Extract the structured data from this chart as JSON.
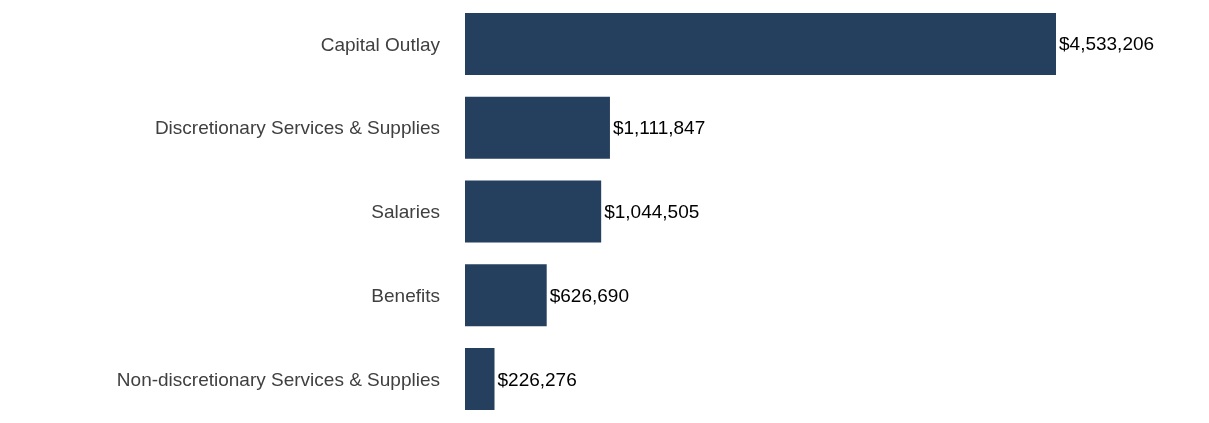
{
  "chart_data": {
    "type": "bar",
    "orientation": "horizontal",
    "categories": [
      "Capital Outlay",
      "Discretionary Services & Supplies",
      "Salaries",
      "Benefits",
      "Non-discretionary Services & Supplies"
    ],
    "values": [
      4533206,
      1111847,
      1044505,
      626690,
      226276
    ],
    "value_labels": [
      "$4,533,206",
      "$1,111,847",
      "$1,044,505",
      "$626,690",
      "$226,276"
    ],
    "color": "#253f5e"
  }
}
